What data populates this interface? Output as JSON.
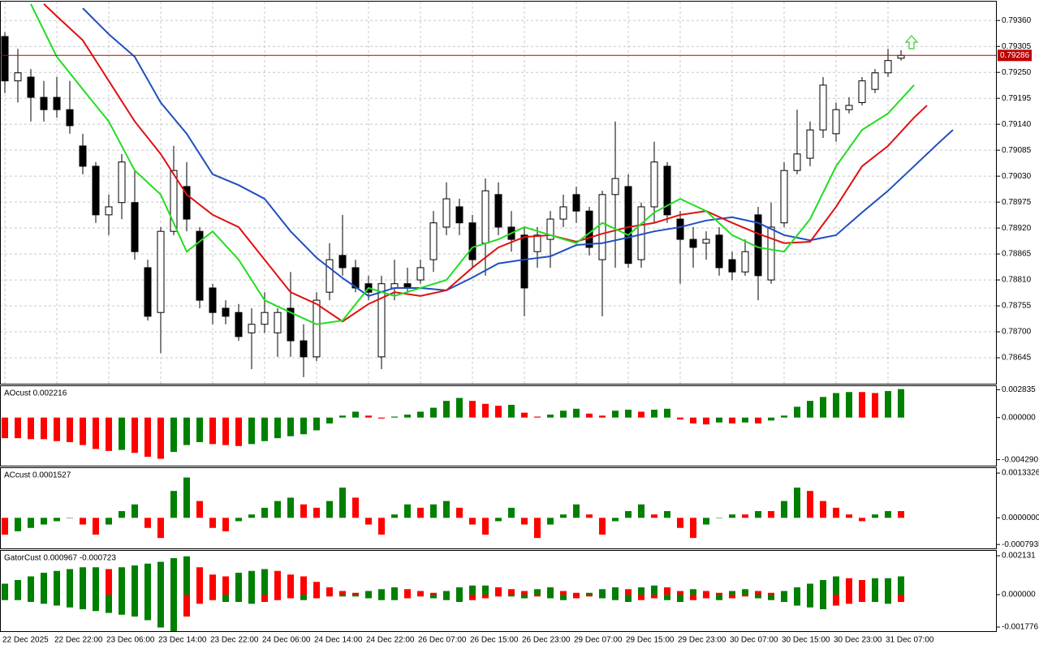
{
  "chart_data": [
    {
      "type": "candlestick",
      "categories": [
        "22 Dec 2025",
        null,
        null,
        null,
        "22 Dec 22:00",
        null,
        null,
        null,
        "23 Dec 06:00",
        null,
        null,
        null,
        "23 Dec 14:00",
        null,
        null,
        null,
        "23 Dec 22:00",
        null,
        null,
        null,
        "24 Dec 06:00",
        null,
        null,
        null,
        "24 Dec 14:00",
        null,
        null,
        null,
        "24 Dec 22:00",
        null,
        null,
        null,
        "26 Dec 07:00",
        null,
        null,
        null,
        "26 Dec 15:00",
        null,
        null,
        null,
        "26 Dec 23:00",
        null,
        null,
        null,
        "29 Dec 07:00",
        null,
        null,
        null,
        "29 Dec 15:00",
        null,
        null,
        null,
        "29 Dec 23:00",
        null,
        null,
        null,
        "30 Dec 07:00",
        null,
        null,
        null,
        "30 Dec 15:00",
        null,
        null,
        null,
        "30 Dec 23:00",
        null,
        null,
        null,
        "31 Dec 07:00",
        null
      ],
      "open": [
        0.79326,
        0.79232,
        0.7924,
        0.79197,
        0.79197,
        0.79171,
        0.79094,
        0.79051,
        0.78948,
        0.78974,
        0.78974,
        0.78836,
        0.78741,
        0.78913,
        0.79008,
        0.78913,
        0.78793,
        0.7875,
        0.78741,
        0.78698,
        0.78716,
        0.78698,
        0.7875,
        0.78681,
        0.78647,
        0.78784,
        0.78862,
        0.78836,
        0.78802,
        0.78647,
        0.78793,
        0.78802,
        0.7881,
        0.78853,
        0.78922,
        0.78965,
        0.78931,
        0.78888,
        0.78991,
        0.78922,
        0.78905,
        0.7887,
        0.78896,
        0.78939,
        0.78991,
        0.78956,
        0.78853,
        0.78991,
        0.79008,
        0.78853,
        0.78965,
        0.79051,
        0.78939,
        0.78896,
        0.78888,
        0.78905,
        0.78853,
        0.78827,
        0.78948,
        0.7881,
        0.78931,
        0.79042,
        0.79068,
        0.79128,
        0.7912,
        0.79171,
        0.79186,
        0.79214,
        0.79249,
        0.7928
      ],
      "high": [
        0.79335,
        0.793,
        0.79257,
        0.79232,
        0.7924,
        0.79232,
        0.7912,
        0.7906,
        0.78991,
        0.79077,
        0.79042,
        0.78853,
        0.78922,
        0.79094,
        0.7906,
        0.78922,
        0.78802,
        0.78767,
        0.78759,
        0.7875,
        0.78784,
        0.7875,
        0.78827,
        0.78716,
        0.78784,
        0.78888,
        0.78948,
        0.78853,
        0.78819,
        0.78819,
        0.78853,
        0.78836,
        0.78853,
        0.78956,
        0.79017,
        0.78982,
        0.78948,
        0.79025,
        0.79017,
        0.78956,
        0.78922,
        0.78922,
        0.78956,
        0.78991,
        0.79008,
        0.78965,
        0.78999,
        0.79146,
        0.79034,
        0.78974,
        0.79103,
        0.7906,
        0.78956,
        0.78922,
        0.78913,
        0.78922,
        0.7887,
        0.78896,
        0.78965,
        0.78974,
        0.7906,
        0.79171,
        0.79146,
        0.7924,
        0.79186,
        0.79197,
        0.7924,
        0.79257,
        0.793,
        0.79297
      ],
      "low": [
        0.79206,
        0.79186,
        0.79146,
        0.79146,
        0.79154,
        0.7912,
        0.79034,
        0.78931,
        0.78905,
        0.78939,
        0.78853,
        0.78724,
        0.78655,
        0.78905,
        0.78913,
        0.7875,
        0.78716,
        0.78716,
        0.78681,
        0.78621,
        0.78698,
        0.78647,
        0.78647,
        0.78604,
        0.78638,
        0.78767,
        0.78819,
        0.78784,
        0.78767,
        0.78621,
        0.78767,
        0.78784,
        0.78802,
        0.78827,
        0.78905,
        0.78905,
        0.78836,
        0.78819,
        0.78905,
        0.7887,
        0.78733,
        0.78836,
        0.78836,
        0.78922,
        0.78931,
        0.78862,
        0.78733,
        0.78836,
        0.78836,
        0.78836,
        0.78931,
        0.78931,
        0.78802,
        0.78836,
        0.78853,
        0.78819,
        0.7881,
        0.78819,
        0.78767,
        0.78802,
        0.78922,
        0.79034,
        0.79051,
        0.79111,
        0.79103,
        0.79163,
        0.7918,
        0.79206,
        0.7924,
        0.79275
      ],
      "close": [
        0.79232,
        0.79249,
        0.79197,
        0.79171,
        0.79171,
        0.79137,
        0.79051,
        0.78948,
        0.78965,
        0.7906,
        0.7887,
        0.78733,
        0.78913,
        0.79042,
        0.78939,
        0.78767,
        0.78741,
        0.78733,
        0.7869,
        0.78716,
        0.78741,
        0.78741,
        0.78681,
        0.78647,
        0.78767,
        0.78853,
        0.78836,
        0.78793,
        0.78784,
        0.78802,
        0.78802,
        0.78793,
        0.78836,
        0.78931,
        0.78982,
        0.78931,
        0.78853,
        0.78999,
        0.78922,
        0.78896,
        0.78793,
        0.78905,
        0.78939,
        0.78965,
        0.78956,
        0.78879,
        0.78991,
        0.79025,
        0.78845,
        0.78965,
        0.7906,
        0.78948,
        0.78896,
        0.78879,
        0.78896,
        0.78836,
        0.78827,
        0.7887,
        0.78819,
        0.78922,
        0.79042,
        0.79077,
        0.79128,
        0.79223,
        0.79171,
        0.7918,
        0.79232,
        0.79249,
        0.79275,
        0.79286
      ],
      "up_color": "#ffffff",
      "down_color": "#000000",
      "series": [
        {
          "color": "#1f4fbf",
          "x": [
            6,
            8,
            10,
            12,
            14,
            16,
            18,
            20,
            22,
            24,
            26,
            28,
            30,
            32,
            34,
            36,
            38,
            40,
            42,
            44,
            46,
            48,
            50,
            52,
            54,
            56,
            58,
            60,
            62,
            64,
            66,
            68,
            70,
            72,
            73
          ],
          "values": [
            0.79386,
            0.79331,
            0.79283,
            0.79186,
            0.7912,
            0.79034,
            0.79011,
            0.78982,
            0.78913,
            0.78857,
            0.78814,
            0.78776,
            0.78793,
            0.78793,
            0.78788,
            0.78815,
            0.78845,
            0.78853,
            0.7886,
            0.78884,
            0.78888,
            0.789,
            0.78913,
            0.78922,
            0.78936,
            0.78943,
            0.78931,
            0.78905,
            0.78894,
            0.78905,
            0.78953,
            0.78999,
            0.79051,
            0.79103,
            0.79128
          ]
        },
        {
          "color": "#e01010",
          "x": [
            3,
            4,
            6,
            8,
            10,
            12,
            14,
            16,
            18,
            20,
            22,
            24,
            26,
            28,
            30,
            32,
            34,
            36,
            38,
            40,
            42,
            44,
            46,
            48,
            50,
            52,
            54,
            56,
            58,
            60,
            62,
            64,
            66,
            68,
            70,
            71
          ],
          "values": [
            0.79395,
            0.79369,
            0.79318,
            0.79232,
            0.79146,
            0.79077,
            0.78991,
            0.78948,
            0.78922,
            0.78853,
            0.78784,
            0.78759,
            0.78722,
            0.78759,
            0.78784,
            0.78776,
            0.78788,
            0.78836,
            0.78879,
            0.78901,
            0.78905,
            0.78891,
            0.78908,
            0.78922,
            0.78931,
            0.78948,
            0.78956,
            0.78931,
            0.78908,
            0.78888,
            0.78891,
            0.78965,
            0.79051,
            0.79094,
            0.79154,
            0.7918
          ]
        },
        {
          "color": "#22dd22",
          "x": [
            2,
            4,
            6,
            8,
            10,
            12,
            14,
            16,
            18,
            20,
            22,
            24,
            26,
            28,
            30,
            32,
            34,
            36,
            38,
            40,
            42,
            44,
            46,
            48,
            50,
            52,
            54,
            56,
            58,
            60,
            62,
            64,
            66,
            68,
            70
          ],
          "values": [
            0.79395,
            0.79283,
            0.79214,
            0.79146,
            0.79042,
            0.78991,
            0.7887,
            0.78913,
            0.78853,
            0.78767,
            0.78741,
            0.78716,
            0.78724,
            0.78793,
            0.78776,
            0.78793,
            0.7881,
            0.78879,
            0.78896,
            0.78922,
            0.78905,
            0.78888,
            0.78931,
            0.78905,
            0.78953,
            0.78982,
            0.78956,
            0.78905,
            0.78879,
            0.7887,
            0.78939,
            0.79051,
            0.79128,
            0.79163,
            0.79223
          ]
        }
      ],
      "current_price": 0.79286,
      "current_color": "#c00000",
      "ylim": [
        0.7859,
        0.794
      ],
      "yticks": [
        {
          "value": 0.7936,
          "label": "0.79360"
        },
        0.79305,
        {
          "value": 0.7925,
          "label": "0.79250"
        },
        0.79195,
        {
          "value": 0.7914,
          "label": "0.79140"
        },
        0.79085,
        {
          "value": 0.7903,
          "label": "0.79030"
        },
        0.78975,
        {
          "value": 0.7892,
          "label": "0.78920"
        },
        0.78865,
        {
          "value": 0.7881,
          "label": "0.78810"
        },
        0.78755,
        {
          "value": 0.787,
          "label": "0.78700"
        },
        0.78645
      ],
      "grid": true
    },
    {
      "type": "bar",
      "title": "AOcust 0.002216",
      "values": [
        -0.0021,
        -0.0021,
        -0.0022,
        -0.0022,
        -0.0024,
        -0.0025,
        -0.0028,
        -0.0032,
        -0.0034,
        -0.0033,
        -0.0036,
        -0.004,
        -0.0042,
        -0.0035,
        -0.0028,
        -0.0025,
        -0.0027,
        -0.0028,
        -0.0029,
        -0.0027,
        -0.0024,
        -0.0021,
        -0.0019,
        -0.0017,
        -0.0013,
        -0.0006,
        0.0002,
        0.0006,
        0.0002,
        -0.0001,
        0.0001,
        0.0003,
        0.0006,
        0.001,
        0.0017,
        0.002,
        0.0017,
        0.0014,
        0.0012,
        0.0013,
        0.0005,
        0.0001,
        0.0003,
        0.0007,
        0.0009,
        0.0004,
        0.0002,
        0.0007,
        0.0008,
        0.0006,
        0.0008,
        0.0009,
        -0.0002,
        -0.0006,
        -0.0007,
        -0.0005,
        -0.0006,
        -0.0005,
        -0.0006,
        -0.0003,
        0.0002,
        0.0011,
        0.0017,
        0.0021,
        0.0025,
        0.0026,
        0.0026,
        0.0025,
        0.0027,
        0.0029
      ],
      "up_color": "#008000",
      "down_color": "#ff0000",
      "ylim": [
        -0.0049,
        0.0032
      ],
      "yticks": [
        0.002835,
        {
          "value": 0,
          "label": "0.000000"
        },
        {
          "value": -0.00429,
          "label": "-0.004290"
        }
      ]
    },
    {
      "type": "bar",
      "title": "ACcust 0.0001527",
      "values": [
        -0.0005,
        -0.0004,
        -0.0003,
        -0.0002,
        -0.0001,
        0,
        -0.0002,
        -0.0005,
        -0.0002,
        0.0002,
        0.0004,
        -0.0003,
        -0.0006,
        0.0008,
        0.0012,
        0.0005,
        -0.0003,
        -0.0004,
        -0.0001,
        0.0001,
        0.0003,
        0.0005,
        0.0006,
        0.0004,
        0.0003,
        0.0005,
        0.0009,
        0.0006,
        -0.0002,
        -0.0005,
        0.0001,
        0.0004,
        0.0003,
        0.0004,
        0.0005,
        0.0003,
        -0.0002,
        -0.0005,
        -0.0001,
        0.0003,
        -0.0002,
        -0.0006,
        -0.0002,
        0.0001,
        0.0004,
        0.0001,
        -0.0005,
        -0.0001,
        0.0002,
        0.0004,
        0.0001,
        0.0002,
        -0.0003,
        -0.0006,
        -0.0002,
        0,
        0.0001,
        0.0001,
        0.0002,
        0.0002,
        0.0005,
        0.0009,
        0.0008,
        0.0005,
        0.0003,
        0.0001,
        -0.0001,
        0.0001,
        0.0002,
        0.0002
      ],
      "up_color": "#008000",
      "down_color": "#ff0000",
      "ylim": [
        -0.00091,
        0.00148
      ],
      "yticks": [
        0.0013326,
        {
          "value": 0,
          "label": "0.0000000"
        },
        -0.0007935
      ]
    },
    {
      "type": "gator",
      "title": "GatorCust 0.000967 -0.000723",
      "series": [
        {
          "values": [
            0.0006,
            0.0008,
            0.001,
            0.0012,
            0.0013,
            0.0014,
            0.0015,
            0.0015,
            0.0014,
            0.0015,
            0.0016,
            0.0017,
            0.0018,
            0.002,
            0.0021,
            0.0015,
            0.0011,
            0.001,
            0.0012,
            0.0013,
            0.0014,
            0.0013,
            0.0011,
            0.001,
            0.0007,
            0.0004,
            0.0002,
            0.0001,
            0.0002,
            0.0003,
            0.0004,
            0.0003,
            0.0002,
            0.0001,
            0.0002,
            0.0004,
            0.0005,
            0.0005,
            0.0004,
            0.0003,
            0.0002,
            0.0003,
            0.0004,
            0.0002,
            0.0001,
            0.0001,
            0.0003,
            0.0004,
            0.0003,
            0.0004,
            0.0005,
            0.0004,
            0.0002,
            0.0003,
            0.0002,
            0.0001,
            0.0002,
            0.0003,
            0.0002,
            0.0001,
            0.0002,
            0.0004,
            0.0006,
            0.0008,
            0.001,
            0.0009,
            0.0008,
            0.0009,
            0.0009,
            0.001
          ]
        },
        {
          "values": [
            -0.0003,
            -0.0003,
            -0.0004,
            -0.0005,
            -0.0006,
            -0.0007,
            -0.0008,
            -0.0009,
            -0.001,
            -0.0011,
            -0.0012,
            -0.0014,
            -0.0018,
            -0.002,
            -0.0012,
            -0.0005,
            -0.0003,
            -0.0004,
            -0.0004,
            -0.0005,
            -0.0004,
            -0.0003,
            -0.0002,
            -0.0003,
            -0.0002,
            -0.0001,
            -0.0001,
            -0.0001,
            -0.0002,
            -0.0003,
            -0.0003,
            -0.0002,
            -0.0001,
            -0.0002,
            -0.0003,
            -0.0004,
            -0.0003,
            -0.0002,
            -0.0001,
            -0.0001,
            -0.0002,
            -0.0001,
            -0.0002,
            -0.0003,
            -0.0002,
            -0.0001,
            -0.0002,
            -0.0003,
            -0.0004,
            -0.0003,
            -0.0002,
            -0.0003,
            -0.0004,
            -0.0003,
            -0.0002,
            -0.0003,
            -0.0002,
            -0.0001,
            -0.0002,
            -0.0003,
            -0.0004,
            -0.0006,
            -0.0007,
            -0.0008,
            -0.0006,
            -0.0005,
            -0.0004,
            -0.0004,
            -0.0005,
            -0.0004
          ]
        }
      ],
      "up_color": "#008000",
      "down_color": "#ff0000",
      "ylim": [
        -0.002,
        0.0024
      ],
      "yticks": [
        0.002131,
        {
          "value": 0,
          "label": "0.000000"
        },
        -0.001776
      ]
    }
  ]
}
